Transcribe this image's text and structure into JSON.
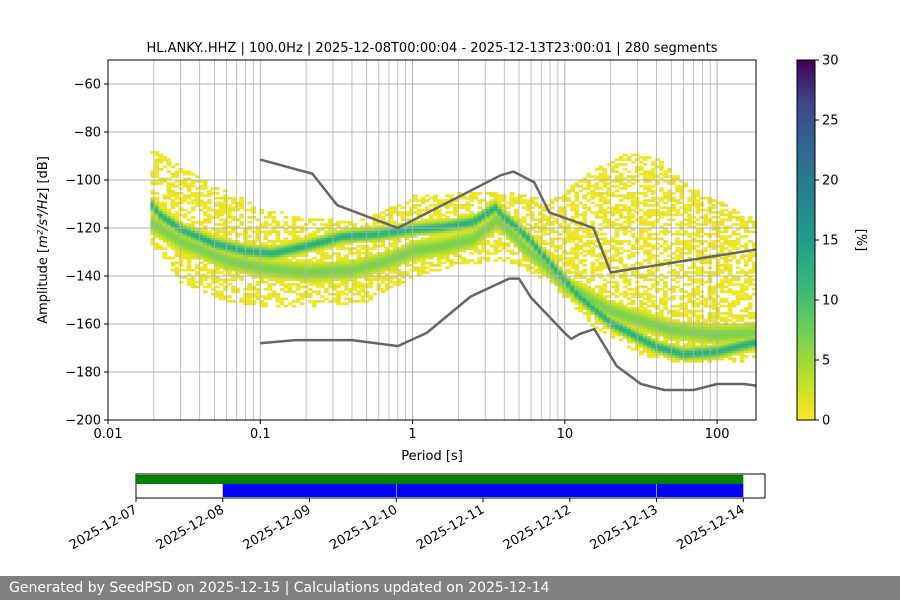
{
  "footer": {
    "text": "Generated by SeedPSD on 2025-12-15 | Calculations updated on 2025-12-14"
  },
  "chart_data": [
    {
      "type": "heatmap",
      "subtype": "probabilistic power spectral density",
      "title": "HL.ANKY..HHZ | 100.0Hz | 2025-12-08T00:00:04 - 2025-12-13T23:00:01 | 280 segments",
      "xlabel": "Period [s]",
      "ylabel_prefix": "Amplitude [",
      "ylabel_unit": "m²/s⁴/Hz",
      "ylabel_suffix": "] [dB]",
      "x_scale": "log",
      "xlim": [
        0.01,
        180
      ],
      "ylim": [
        -200,
        -50
      ],
      "x_ticks": [
        0.01,
        0.1,
        1,
        10,
        100
      ],
      "x_tick_labels": [
        "0.01",
        "0.1",
        "1",
        "10",
        "100"
      ],
      "y_ticks": [
        -200,
        -180,
        -160,
        -140,
        -120,
        -100,
        -80,
        -60
      ],
      "y_tick_labels": [
        "−200",
        "−180",
        "−160",
        "−140",
        "−120",
        "−100",
        "−80",
        "−60"
      ],
      "grid": true,
      "colormap": "viridis_r",
      "colorbar": {
        "label": "[%]",
        "range": [
          0,
          30
        ],
        "ticks": [
          0,
          5,
          10,
          15,
          20,
          25,
          30
        ],
        "tick_labels": [
          "0",
          "5",
          "10",
          "15",
          "20",
          "25",
          "30"
        ]
      },
      "noise_models": [
        {
          "name": "NHNM",
          "color": "#666666",
          "points": [
            [
              0.1,
              -91.5
            ],
            [
              0.22,
              -97.4
            ],
            [
              0.32,
              -110.5
            ],
            [
              0.8,
              -120
            ],
            [
              3.8,
              -98
            ],
            [
              4.6,
              -96.5
            ],
            [
              6.3,
              -101
            ],
            [
              7.9,
              -113.5
            ],
            [
              15.4,
              -120
            ],
            [
              20,
              -138.5
            ],
            [
              180,
              -129
            ]
          ]
        },
        {
          "name": "NLNM",
          "color": "#666666",
          "points": [
            [
              0.1,
              -168
            ],
            [
              0.17,
              -166.7
            ],
            [
              0.4,
              -166.7
            ],
            [
              0.8,
              -169.2
            ],
            [
              1.24,
              -163.7
            ],
            [
              2.4,
              -148.6
            ],
            [
              4.3,
              -141.1
            ],
            [
              5.0,
              -141.1
            ],
            [
              6.0,
              -149
            ],
            [
              10,
              -163.8
            ],
            [
              11,
              -166.2
            ],
            [
              12.5,
              -164.2
            ],
            [
              15.6,
              -162.1
            ],
            [
              21.9,
              -177.5
            ],
            [
              31.6,
              -185
            ],
            [
              45,
              -187.5
            ],
            [
              70,
              -187.5
            ],
            [
              100,
              -185
            ],
            [
              150,
              -185
            ],
            [
              180,
              -185.7
            ]
          ]
        }
      ],
      "density": {
        "mode_curve": [
          [
            0.019,
            -110
          ],
          [
            0.022,
            -115
          ],
          [
            0.03,
            -121
          ],
          [
            0.05,
            -127
          ],
          [
            0.08,
            -130
          ],
          [
            0.12,
            -131
          ],
          [
            0.2,
            -128
          ],
          [
            0.35,
            -124
          ],
          [
            0.6,
            -123
          ],
          [
            1.0,
            -121
          ],
          [
            1.6,
            -120
          ],
          [
            2.5,
            -118
          ],
          [
            3.5,
            -112
          ],
          [
            4.0,
            -116
          ],
          [
            4.8,
            -120
          ],
          [
            6.0,
            -126
          ],
          [
            8,
            -135
          ],
          [
            12,
            -148
          ],
          [
            20,
            -160
          ],
          [
            40,
            -170
          ],
          [
            60,
            -173
          ],
          [
            100,
            -172
          ],
          [
            180,
            -168
          ]
        ],
        "secondary_curve": [
          [
            0.019,
            -118
          ],
          [
            0.03,
            -126
          ],
          [
            0.06,
            -134
          ],
          [
            0.1,
            -137
          ],
          [
            0.2,
            -139
          ],
          [
            0.4,
            -138
          ],
          [
            0.7,
            -134
          ],
          [
            1.0,
            -130
          ],
          [
            1.6,
            -128
          ],
          [
            2.5,
            -125
          ],
          [
            3.6,
            -117
          ],
          [
            4.4,
            -122
          ],
          [
            5.5,
            -129
          ],
          [
            7,
            -134
          ],
          [
            10,
            -144
          ],
          [
            20,
            -155
          ],
          [
            50,
            -163
          ],
          [
            100,
            -165
          ],
          [
            180,
            -164
          ]
        ],
        "spread_upper": [
          [
            0.019,
            -88
          ],
          [
            0.03,
            -95
          ],
          [
            0.05,
            -104
          ],
          [
            0.1,
            -112
          ],
          [
            0.2,
            -118
          ],
          [
            0.5,
            -117
          ],
          [
            1,
            -108
          ],
          [
            2,
            -107
          ],
          [
            4,
            -106
          ],
          [
            8,
            -110
          ],
          [
            15,
            -98
          ],
          [
            25,
            -90
          ],
          [
            40,
            -92
          ],
          [
            70,
            -105
          ],
          [
            180,
            -118
          ]
        ],
        "spread_lower": [
          [
            0.019,
            -125
          ],
          [
            0.03,
            -142
          ],
          [
            0.06,
            -150
          ],
          [
            0.1,
            -152
          ],
          [
            0.2,
            -153
          ],
          [
            0.5,
            -150
          ],
          [
            1,
            -140
          ],
          [
            2,
            -135
          ],
          [
            4,
            -133
          ],
          [
            8,
            -142
          ],
          [
            15,
            -160
          ],
          [
            30,
            -172
          ],
          [
            60,
            -176
          ],
          [
            100,
            -175
          ],
          [
            180,
            -176
          ]
        ]
      }
    },
    {
      "type": "timeline",
      "xlim": [
        "2025-12-07",
        "2025-12-14T06:00"
      ],
      "tick_labels": [
        "2025-12-07",
        "2025-12-08",
        "2025-12-09",
        "2025-12-10",
        "2025-12-11",
        "2025-12-12",
        "2025-12-13",
        "2025-12-14"
      ],
      "tick_dates": [
        "2025-12-07",
        "2025-12-08",
        "2025-12-09",
        "2025-12-10",
        "2025-12-11",
        "2025-12-12",
        "2025-12-13",
        "2025-12-14"
      ],
      "bars": [
        {
          "color": "#008000",
          "row": "top",
          "start": "2025-12-07",
          "end": "2025-12-14"
        },
        {
          "color": "#0000ff",
          "row": "bottom",
          "start": "2025-12-08",
          "end": "2025-12-09T23:55"
        },
        {
          "color": "#0000ff",
          "row": "bottom",
          "start": "2025-12-10T00:05",
          "end": "2025-12-12T23:55"
        },
        {
          "color": "#0000ff",
          "row": "bottom",
          "start": "2025-12-13T00:05",
          "end": "2025-12-14"
        }
      ]
    }
  ]
}
